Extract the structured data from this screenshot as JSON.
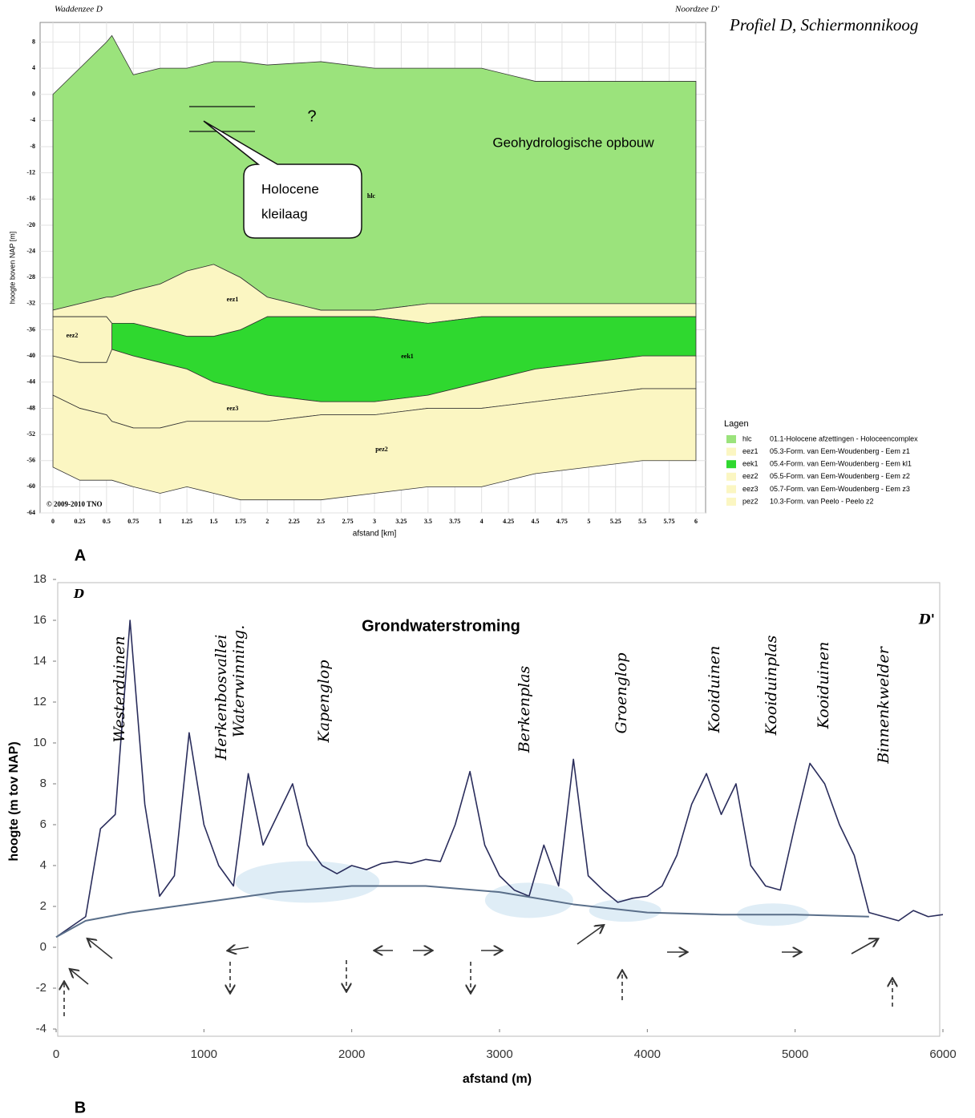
{
  "chart_data": [
    {
      "type": "area",
      "label": "A",
      "title": "Profiel D, Schiermonnikoog",
      "subtitle": "Geohydrologische opbouw",
      "left_label": "Waddenzee D",
      "right_label": "Noordzee D'",
      "callout": [
        "Holocene",
        "kleilaag"
      ],
      "question": "?",
      "copyright": "© 2009-2010 TNO",
      "xlabel": "afstand [km]",
      "ylabel": "hoogte boven NAP [m]",
      "legend_title": "Lagen",
      "xlim": [
        -0.12,
        6.09
      ],
      "ylim": [
        -64,
        11
      ],
      "xticks": [
        0,
        0.25,
        0.5,
        0.75,
        1,
        1.25,
        1.5,
        1.75,
        2,
        2.25,
        2.5,
        2.75,
        3,
        3.25,
        3.5,
        3.75,
        4,
        4.25,
        4.5,
        4.75,
        5,
        5.25,
        5.5,
        5.75,
        6
      ],
      "yticks": [
        8,
        4,
        0,
        -4,
        -8,
        -12,
        -16,
        -20,
        -24,
        -28,
        -32,
        -36,
        -40,
        -44,
        -48,
        -52,
        -56,
        -60,
        -64
      ],
      "grid": true,
      "x": [
        0,
        0.25,
        0.5,
        0.55,
        0.75,
        1,
        1.25,
        1.5,
        1.75,
        2,
        2.5,
        3,
        3.5,
        4,
        4.5,
        5,
        5.5,
        6
      ],
      "layers": [
        {
          "name": "hlc",
          "description": "01.1-Holocene afzettingen - Holoceencomplex",
          "color": "#9be37c",
          "top": [
            0,
            4,
            8,
            9,
            3,
            4,
            4,
            5,
            5,
            4.5,
            5,
            4,
            4,
            4,
            2,
            2,
            2,
            2
          ],
          "bottom": [
            -33,
            -32,
            -31,
            -31,
            -30,
            -29,
            -27,
            -26,
            -28,
            -31,
            -33,
            -33,
            -32,
            -32,
            -32,
            -32,
            -32,
            -32
          ]
        },
        {
          "name": "eez1",
          "description": "05.3-Form. van Eem-Woudenberg - Eem z1",
          "color": "#fbf6c2",
          "top": [
            -33,
            -32,
            -31,
            -31,
            -30,
            -29,
            -27,
            -26,
            -28,
            -31,
            -33,
            -33,
            -32,
            -32,
            -32,
            -32,
            -32,
            -32
          ],
          "bottom": [
            -34,
            -34,
            -34,
            -35,
            -35,
            -36,
            -37,
            -37,
            -36,
            -34,
            -34,
            -34,
            -35,
            -34,
            -34,
            -34,
            -34,
            -34
          ]
        },
        {
          "name": "eek1",
          "description": "05.4-Form. van Eem-Woudenberg - Eem kl1",
          "color": "#2fd82f",
          "top": [
            null,
            null,
            null,
            -35,
            -35,
            -36,
            -37,
            -37,
            -36,
            -34,
            -34,
            -34,
            -35,
            -34,
            -34,
            -34,
            -34,
            -34
          ],
          "bottom": [
            null,
            null,
            null,
            -39,
            -40,
            -41,
            -42,
            -44,
            -45,
            -46,
            -47,
            -47,
            -46,
            -44,
            -42,
            -41,
            -40,
            -40
          ]
        },
        {
          "name": "eez2",
          "description": "05.5-Form. van Eem-Woudenberg - Eem z2",
          "color": "#fbf6c2",
          "top": [
            -34,
            -34,
            -34,
            -35,
            null,
            null,
            null,
            null,
            null,
            null,
            null,
            null,
            null,
            null,
            null,
            null,
            null,
            null
          ],
          "bottom": [
            -40,
            -41,
            -41,
            -39,
            null,
            null,
            null,
            null,
            null,
            null,
            null,
            null,
            null,
            null,
            null,
            null,
            null,
            null
          ]
        },
        {
          "name": "eez3",
          "description": "05.7-Form. van Eem-Woudenberg - Eem z3",
          "color": "#fbf6c2",
          "top": [
            -40,
            -41,
            -41,
            -39,
            -40,
            -41,
            -42,
            -44,
            -45,
            -46,
            -47,
            -47,
            -46,
            -44,
            -42,
            -41,
            -40,
            -40
          ],
          "bottom": [
            -46,
            -48,
            -49,
            -50,
            -51,
            -51,
            -50,
            -50,
            -50,
            -50,
            -49,
            -49,
            -48,
            -48,
            -47,
            -46,
            -45,
            -45
          ]
        },
        {
          "name": "pez2",
          "description": "10.3-Form. van Peelo - Peelo z2",
          "color": "#fbf6c2",
          "top": [
            -46,
            -48,
            -49,
            -50,
            -51,
            -51,
            -50,
            -50,
            -50,
            -50,
            -49,
            -49,
            -48,
            -48,
            -47,
            -46,
            -45,
            -45
          ],
          "bottom": [
            -57,
            -59,
            -59,
            -59,
            -60,
            -61,
            -60,
            -61,
            -62,
            -62,
            -62,
            -61,
            -60,
            -60,
            -58,
            -57,
            -56,
            -56
          ]
        }
      ]
    },
    {
      "type": "line",
      "label": "B",
      "title": "Grondwaterstroming",
      "left_label": "D",
      "right_label": "D'",
      "xlabel": "afstand (m)",
      "ylabel": "hoogte (m tov NAP)",
      "xlim": [
        0,
        6000
      ],
      "ylim": [
        -4,
        18
      ],
      "xticks": [
        0,
        1000,
        2000,
        3000,
        4000,
        5000,
        6000
      ],
      "yticks": [
        -4,
        -2,
        0,
        2,
        4,
        6,
        8,
        10,
        12,
        14,
        16,
        18
      ],
      "annotations": [
        "Westerduinen",
        "Herkenbosvallei",
        "Waterwinning.",
        "Kapenglop",
        "Berkenplas",
        "Groenglop",
        "Kooiduinen",
        "Kooiduinplas",
        "Kooiduinen",
        "Binnenkwelder"
      ],
      "series": [
        {
          "color": "#2a2d5c",
          "x": [
            0,
            100,
            200,
            300,
            400,
            500,
            600,
            700,
            800,
            900,
            1000,
            1100,
            1200,
            1300,
            1400,
            1500,
            1600,
            1700,
            1800,
            1900,
            2000,
            2100,
            2200,
            2300,
            2400,
            2500,
            2600,
            2700,
            2800,
            2900,
            3000,
            3100,
            3200,
            3300,
            3400,
            3500,
            3600,
            3700,
            3800,
            3900,
            4000,
            4100,
            4200,
            4300,
            4400,
            4500,
            4600,
            4700,
            4800,
            4900,
            5000,
            5100,
            5200,
            5300,
            5400,
            5500,
            5600,
            5700,
            5800,
            5900,
            6000
          ],
          "values": [
            0.5,
            1.0,
            1.5,
            5.8,
            6.5,
            16,
            7,
            2.5,
            3.5,
            10.5,
            6,
            4,
            3,
            8.5,
            5,
            6.5,
            8,
            5,
            4,
            3.6,
            4,
            3.8,
            4.1,
            4.2,
            4.1,
            4.3,
            4.2,
            6,
            8.6,
            5,
            3.5,
            2.8,
            2.5,
            5,
            3,
            9.2,
            3.5,
            2.8,
            2.2,
            2.4,
            2.5,
            3,
            4.5,
            7,
            8.5,
            6.5,
            8,
            4,
            3,
            2.8,
            6,
            9,
            8,
            6,
            4.5,
            1.7,
            1.5,
            1.3,
            1.8,
            1.5,
            1.6
          ]
        },
        {
          "color": "#5a6f8a",
          "x": [
            0,
            200,
            500,
            1000,
            1500,
            2000,
            2500,
            3000,
            3500,
            4000,
            4500,
            5000,
            5500
          ],
          "values": [
            0.5,
            1.3,
            1.7,
            2.2,
            2.7,
            3.0,
            3.0,
            2.7,
            2.1,
            1.7,
            1.6,
            1.6,
            1.5
          ]
        }
      ]
    }
  ]
}
